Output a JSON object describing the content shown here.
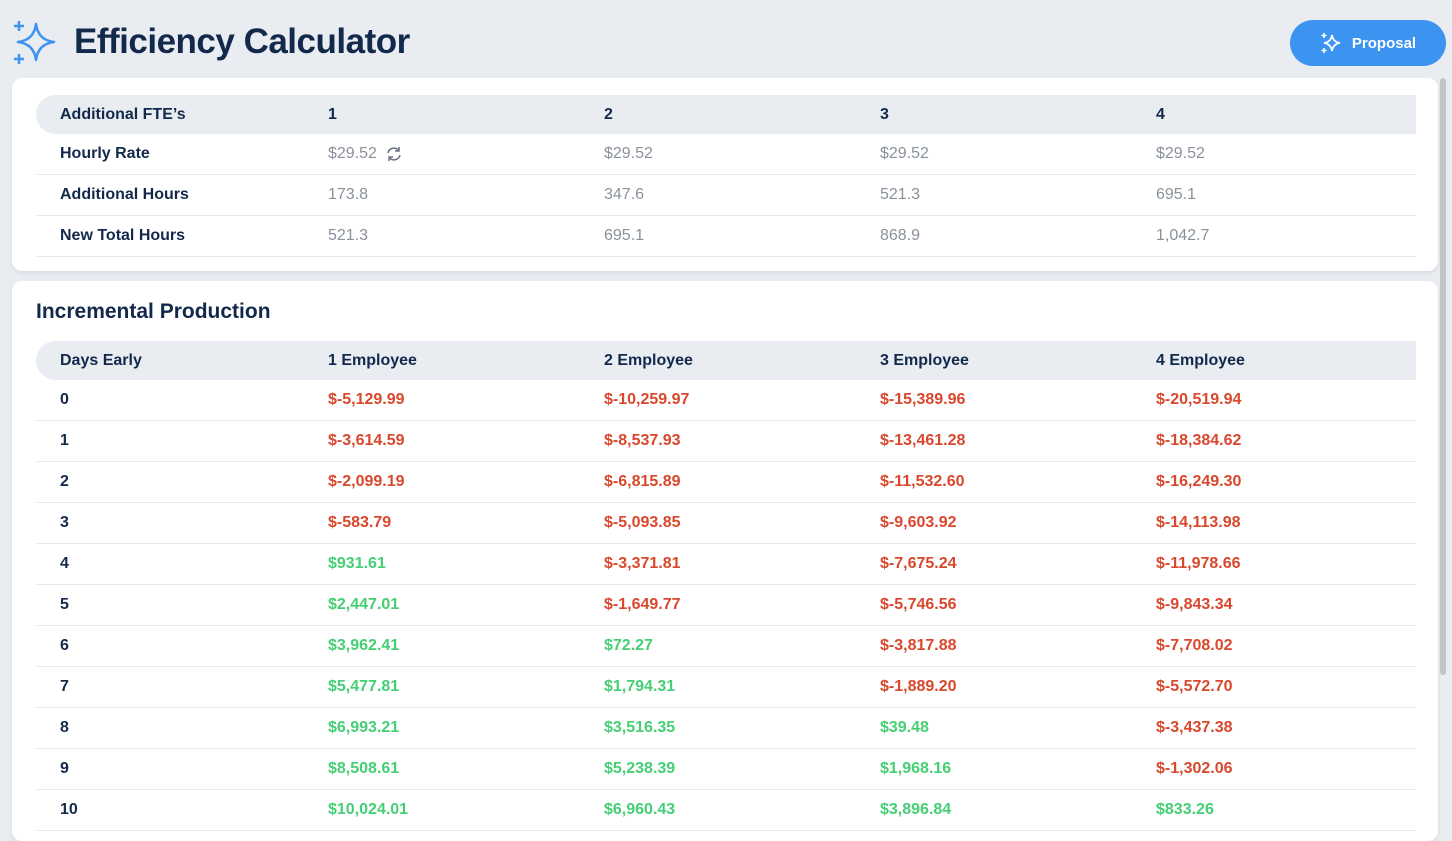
{
  "header": {
    "title": "Efficiency Calculator",
    "button": "Proposal"
  },
  "fte_table": {
    "headers": [
      "Additional FTE’s",
      "1",
      "2",
      "3",
      "4"
    ],
    "rows": [
      [
        "Hourly Rate",
        "$29.52",
        "$29.52",
        "$29.52",
        "$29.52"
      ],
      [
        "Additional Hours",
        "173.8",
        "347.6",
        "521.3",
        "695.1"
      ],
      [
        "New Total Hours",
        "521.3",
        "695.1",
        "868.9",
        "1,042.7"
      ]
    ]
  },
  "production": {
    "title": "Incremental Production",
    "headers": [
      "Days Early",
      "1 Employee",
      "2 Employee",
      "3 Employee",
      "4 Employee"
    ],
    "rows": [
      [
        "0",
        "$-5,129.99",
        "$-10,259.97",
        "$-15,389.96",
        "$-20,519.94"
      ],
      [
        "1",
        "$-3,614.59",
        "$-8,537.93",
        "$-13,461.28",
        "$-18,384.62"
      ],
      [
        "2",
        "$-2,099.19",
        "$-6,815.89",
        "$-11,532.60",
        "$-16,249.30"
      ],
      [
        "3",
        "$-583.79",
        "$-5,093.85",
        "$-9,603.92",
        "$-14,113.98"
      ],
      [
        "4",
        "$931.61",
        "$-3,371.81",
        "$-7,675.24",
        "$-11,978.66"
      ],
      [
        "5",
        "$2,447.01",
        "$-1,649.77",
        "$-5,746.56",
        "$-9,843.34"
      ],
      [
        "6",
        "$3,962.41",
        "$72.27",
        "$-3,817.88",
        "$-7,708.02"
      ],
      [
        "7",
        "$5,477.81",
        "$1,794.31",
        "$-1,889.20",
        "$-5,572.70"
      ],
      [
        "8",
        "$6,993.21",
        "$3,516.35",
        "$39.48",
        "$-3,437.38"
      ],
      [
        "9",
        "$8,508.61",
        "$5,238.39",
        "$1,968.16",
        "$-1,302.06"
      ],
      [
        "10",
        "$10,024.01",
        "$6,960.43",
        "$3,896.84",
        "$833.26"
      ]
    ]
  }
}
